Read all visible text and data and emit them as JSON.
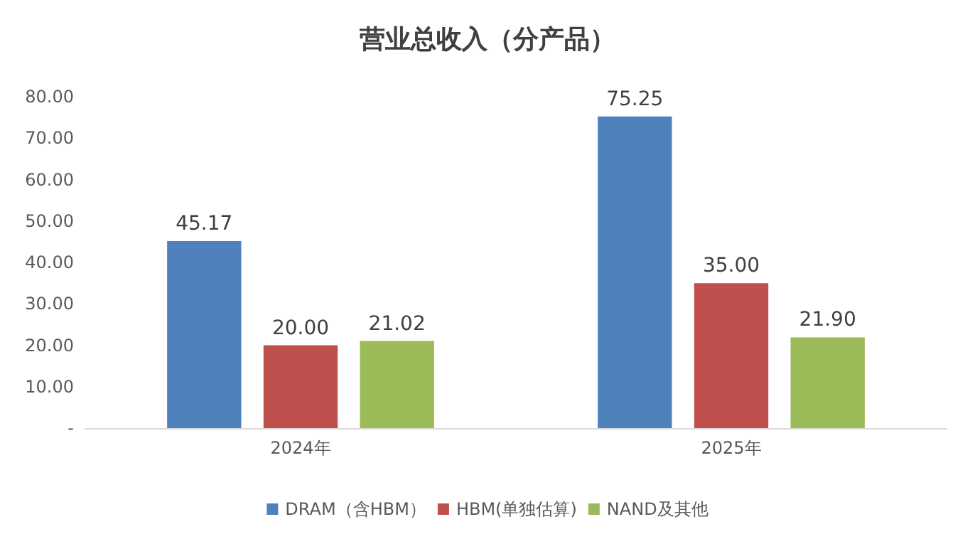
{
  "chart_data": {
    "type": "bar",
    "title": "营业总收入（分产品）",
    "categories": [
      "2024年",
      "2025年"
    ],
    "series": [
      {
        "name": "DRAM（含HBM）",
        "color": "#4f81bd",
        "values": [
          45.17,
          75.25
        ],
        "value_labels": [
          "45.17",
          "75.25"
        ]
      },
      {
        "name": "HBM(单独估算)",
        "color": "#c0504d",
        "values": [
          20,
          35
        ],
        "value_labels": [
          "20.00",
          "35.00"
        ]
      },
      {
        "name": "NAND及其他",
        "color": "#9bbb59",
        "values": [
          21.02,
          21.9
        ],
        "value_labels": [
          "21.02",
          "21.90"
        ]
      }
    ],
    "ylim": [
      0,
      80
    ],
    "yticks": [
      {
        "value": 0,
        "label": "-"
      },
      {
        "value": 10,
        "label": "10.00"
      },
      {
        "value": 20,
        "label": "20.00"
      },
      {
        "value": 30,
        "label": "30.00"
      },
      {
        "value": 40,
        "label": "40.00"
      },
      {
        "value": 50,
        "label": "50.00"
      },
      {
        "value": 60,
        "label": "60.00"
      },
      {
        "value": 70,
        "label": "70.00"
      },
      {
        "value": 80,
        "label": "80.00"
      }
    ],
    "grid": false,
    "legend": "bottom"
  }
}
